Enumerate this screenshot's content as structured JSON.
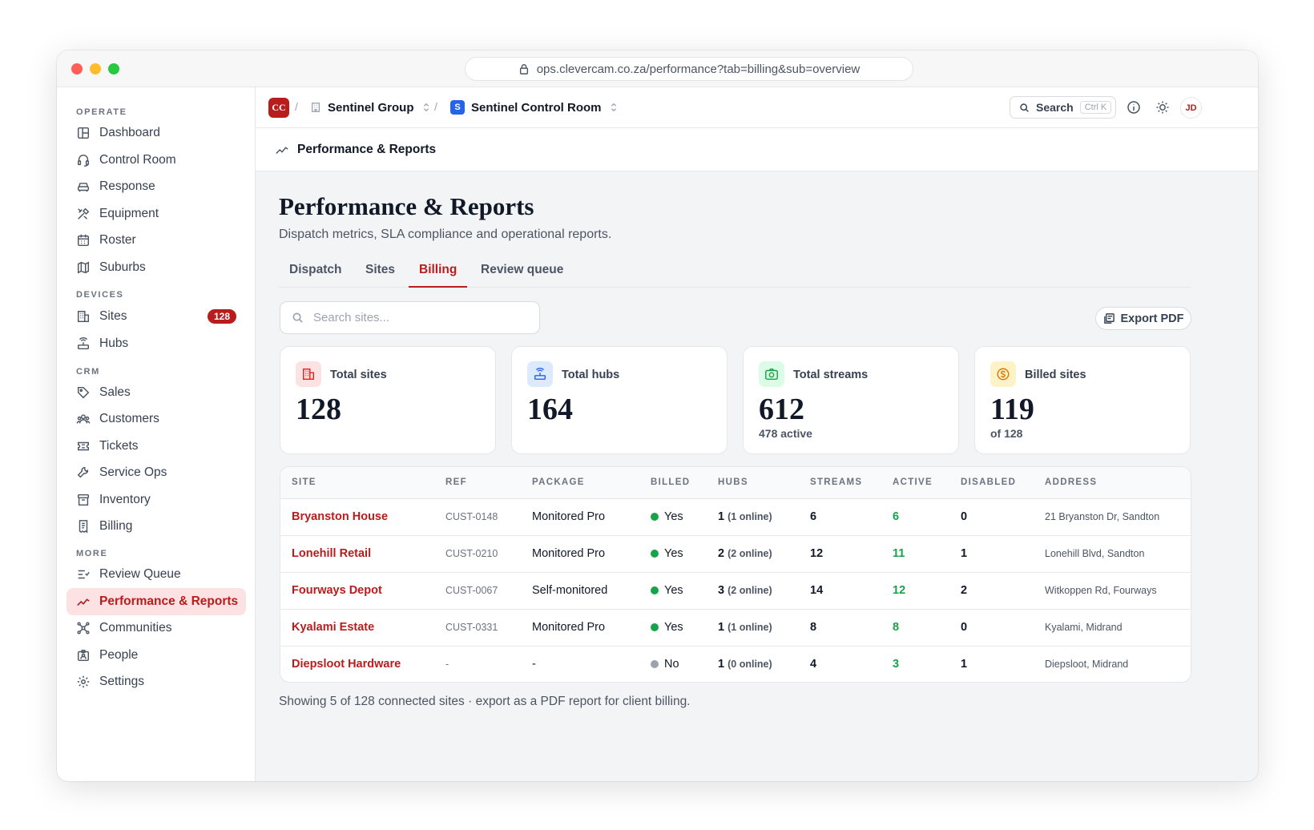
{
  "browser": {
    "url": "ops.clevercam.co.za/performance?tab=billing&sub=overview"
  },
  "sidebar": {
    "sections": [
      {
        "label": "OPERATE",
        "items": [
          {
            "label": "Dashboard",
            "icon": "layout-icon"
          },
          {
            "label": "Control Room",
            "icon": "headset-icon"
          },
          {
            "label": "Response",
            "icon": "car-icon"
          },
          {
            "label": "Equipment",
            "icon": "tools-icon"
          },
          {
            "label": "Roster",
            "icon": "calendar-icon"
          },
          {
            "label": "Suburbs",
            "icon": "map-icon"
          }
        ]
      },
      {
        "label": "DEVICES",
        "items": [
          {
            "label": "Sites",
            "icon": "building-icon",
            "badge": "128"
          },
          {
            "label": "Hubs",
            "icon": "router-icon"
          }
        ]
      },
      {
        "label": "CRM",
        "items": [
          {
            "label": "Sales",
            "icon": "tag-icon"
          },
          {
            "label": "Customers",
            "icon": "users-icon"
          },
          {
            "label": "Tickets",
            "icon": "ticket-icon"
          },
          {
            "label": "Service Ops",
            "icon": "wrench-icon"
          },
          {
            "label": "Inventory",
            "icon": "archive-icon"
          },
          {
            "label": "Billing",
            "icon": "receipt-icon"
          }
        ]
      },
      {
        "label": "MORE",
        "items": [
          {
            "label": "Review Queue",
            "icon": "list-check-icon"
          },
          {
            "label": "Performance & Reports",
            "icon": "trend-icon",
            "active": true
          },
          {
            "label": "Communities",
            "icon": "network-icon"
          },
          {
            "label": "People",
            "icon": "id-card-icon"
          },
          {
            "label": "Settings",
            "icon": "gear-icon"
          }
        ]
      }
    ]
  },
  "topbar": {
    "logo": "CC",
    "org": "Sentinel Group",
    "workspace_badge": "S",
    "workspace": "Sentinel Control Room",
    "search_label": "Search",
    "search_shortcut": "Ctrl K",
    "avatar_initials": "JD"
  },
  "pagebar": {
    "title": "Performance & Reports"
  },
  "page": {
    "title": "Performance & Reports",
    "subtitle": "Dispatch metrics, SLA compliance and operational reports.",
    "tabs": [
      {
        "label": "Dispatch"
      },
      {
        "label": "Sites"
      },
      {
        "label": "Billing",
        "active": true
      },
      {
        "label": "Review queue"
      }
    ],
    "search_placeholder": "Search sites...",
    "export_label": "Export PDF",
    "footer_note": "Showing 5 of 128 connected sites · export as a PDF report for client billing."
  },
  "stats": [
    {
      "label": "Total sites",
      "value": "128",
      "note": "",
      "icon": "building-icon",
      "color": "#dc2626",
      "bg": "#fde2e4"
    },
    {
      "label": "Total hubs",
      "value": "164",
      "note": "",
      "icon": "router-icon",
      "color": "#2563eb",
      "bg": "#dbeafe"
    },
    {
      "label": "Total streams",
      "value": "612",
      "note": "478 active",
      "icon": "camera-icon",
      "color": "#16a34a",
      "bg": "#dcfce7"
    },
    {
      "label": "Billed sites",
      "value": "119",
      "note": "of 128",
      "icon": "coin-icon",
      "color": "#d97706",
      "bg": "#fef3c7"
    }
  ],
  "table": {
    "columns": [
      "SITE",
      "REF",
      "PACKAGE",
      "BILLED",
      "HUBS",
      "STREAMS",
      "ACTIVE",
      "DISABLED",
      "ADDRESS"
    ],
    "rows": [
      {
        "site": "Bryanston House",
        "ref": "CUST-0148",
        "package": "Monitored Pro",
        "billed": "Yes",
        "billed_color": "#16a34a",
        "hubs": "1",
        "hubs_online": "(1 online)",
        "streams": "6",
        "active": "6",
        "disabled": "0",
        "address": "21 Bryanston Dr, Sandton"
      },
      {
        "site": "Lonehill Retail",
        "ref": "CUST-0210",
        "package": "Monitored Pro",
        "billed": "Yes",
        "billed_color": "#16a34a",
        "hubs": "2",
        "hubs_online": "(2 online)",
        "streams": "12",
        "active": "11",
        "disabled": "1",
        "address": "Lonehill Blvd, Sandton"
      },
      {
        "site": "Fourways Depot",
        "ref": "CUST-0067",
        "package": "Self-monitored",
        "billed": "Yes",
        "billed_color": "#16a34a",
        "hubs": "3",
        "hubs_online": "(2 online)",
        "streams": "14",
        "active": "12",
        "disabled": "2",
        "address": "Witkoppen Rd, Fourways"
      },
      {
        "site": "Kyalami Estate",
        "ref": "CUST-0331",
        "package": "Monitored Pro",
        "billed": "Yes",
        "billed_color": "#16a34a",
        "hubs": "1",
        "hubs_online": "(1 online)",
        "streams": "8",
        "active": "8",
        "disabled": "0",
        "address": "Kyalami, Midrand"
      },
      {
        "site": "Diepsloot Hardware",
        "ref": "-",
        "package": "-",
        "billed": "No",
        "billed_color": "#9ca3af",
        "hubs": "1",
        "hubs_online": "(0 online)",
        "streams": "4",
        "active": "3",
        "disabled": "1",
        "address": "Diepsloot, Midrand"
      }
    ]
  }
}
